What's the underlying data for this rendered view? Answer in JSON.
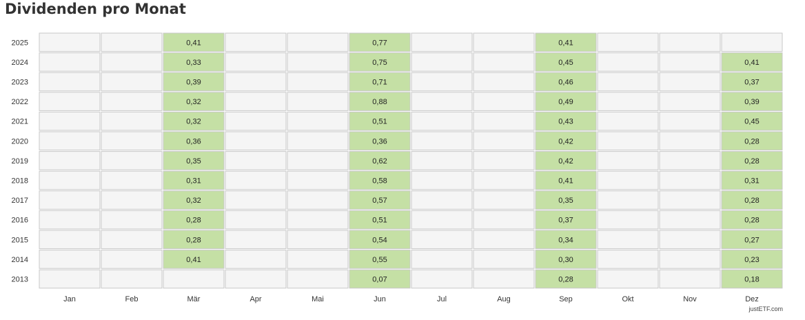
{
  "title": "Dividenden pro Monat",
  "credit": "justETF.com",
  "colors": {
    "filled": "#c5e0a5",
    "empty": "#f5f5f5",
    "border": "#c8c8c8"
  },
  "chart_data": {
    "type": "heatmap",
    "title": "Dividenden pro Monat",
    "x_categories": [
      "Jan",
      "Feb",
      "Mär",
      "Apr",
      "Mai",
      "Jun",
      "Jul",
      "Aug",
      "Sep",
      "Okt",
      "Nov",
      "Dez"
    ],
    "y_categories": [
      "2025",
      "2024",
      "2023",
      "2022",
      "2021",
      "2020",
      "2019",
      "2018",
      "2017",
      "2016",
      "2015",
      "2014",
      "2013"
    ],
    "values": [
      [
        null,
        null,
        "0,41",
        null,
        null,
        "0,77",
        null,
        null,
        "0,41",
        null,
        null,
        null
      ],
      [
        null,
        null,
        "0,33",
        null,
        null,
        "0,75",
        null,
        null,
        "0,45",
        null,
        null,
        "0,41"
      ],
      [
        null,
        null,
        "0,39",
        null,
        null,
        "0,71",
        null,
        null,
        "0,46",
        null,
        null,
        "0,37"
      ],
      [
        null,
        null,
        "0,32",
        null,
        null,
        "0,88",
        null,
        null,
        "0,49",
        null,
        null,
        "0,39"
      ],
      [
        null,
        null,
        "0,32",
        null,
        null,
        "0,51",
        null,
        null,
        "0,43",
        null,
        null,
        "0,45"
      ],
      [
        null,
        null,
        "0,36",
        null,
        null,
        "0,36",
        null,
        null,
        "0,42",
        null,
        null,
        "0,28"
      ],
      [
        null,
        null,
        "0,35",
        null,
        null,
        "0,62",
        null,
        null,
        "0,42",
        null,
        null,
        "0,28"
      ],
      [
        null,
        null,
        "0,31",
        null,
        null,
        "0,58",
        null,
        null,
        "0,41",
        null,
        null,
        "0,31"
      ],
      [
        null,
        null,
        "0,32",
        null,
        null,
        "0,57",
        null,
        null,
        "0,35",
        null,
        null,
        "0,28"
      ],
      [
        null,
        null,
        "0,28",
        null,
        null,
        "0,51",
        null,
        null,
        "0,37",
        null,
        null,
        "0,28"
      ],
      [
        null,
        null,
        "0,28",
        null,
        null,
        "0,54",
        null,
        null,
        "0,34",
        null,
        null,
        "0,27"
      ],
      [
        null,
        null,
        "0,41",
        null,
        null,
        "0,55",
        null,
        null,
        "0,30",
        null,
        null,
        "0,23"
      ],
      [
        null,
        null,
        null,
        null,
        null,
        "0,07",
        null,
        null,
        "0,28",
        null,
        null,
        "0,18"
      ]
    ]
  }
}
